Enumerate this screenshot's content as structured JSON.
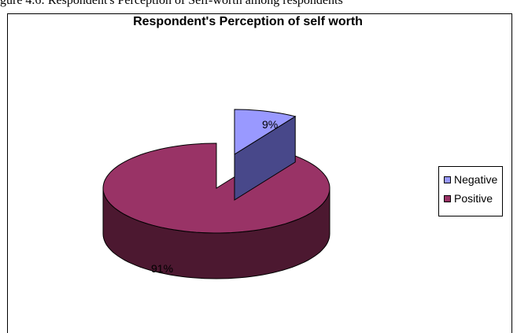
{
  "caption_text": "gure 4.6: Respondent's Perception of Self-worth among respondents",
  "chart_data": {
    "type": "pie",
    "title": "Respondent's Perception of self worth",
    "categories": [
      "Negative",
      "Positive"
    ],
    "values": [
      9,
      91
    ],
    "data_labels": [
      "9%",
      "91%"
    ],
    "colors": [
      "#9999ff",
      "#993366"
    ],
    "side_colors": [
      "#48488a",
      "#4c1830"
    ],
    "legend_position": "right",
    "exploded": "Negative",
    "three_d": true
  }
}
